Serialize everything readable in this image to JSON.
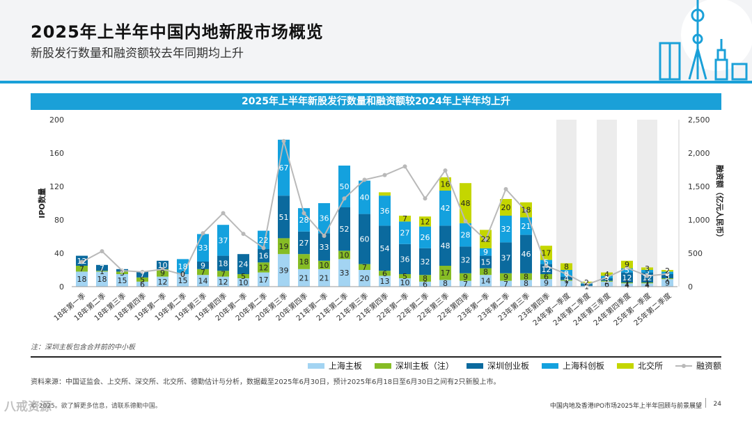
{
  "header": {
    "title": "2025年上半年中国内地新股市场概览",
    "subtitle": "新股发行数量和融资额较去年同期均上升"
  },
  "chart_data": {
    "type": "bar",
    "title": "2025年上半年新股发行数量和融资额较2024年上半年均上升",
    "ylabel": "IPO数量",
    "y2label": "融资额（亿元人民币）",
    "ylim": [
      0,
      200
    ],
    "yticks": [
      0,
      40,
      80,
      120,
      160,
      200
    ],
    "y2lim": [
      0,
      2500
    ],
    "y2ticks": [
      "0",
      "500",
      "1,000",
      "1,500",
      "2,000",
      "2,500"
    ],
    "categories": [
      "18年第一季",
      "18年第二季",
      "18年第三季",
      "18年第四季",
      "19年第一季",
      "19年第二季",
      "19年第三季",
      "19年第四季",
      "20年第一季",
      "20年第二季",
      "20年第三季",
      "20年第四季",
      "21年第一季",
      "21年第二季",
      "21年第三季",
      "21年第四季",
      "22年第一季",
      "22年第二季",
      "22年第三季",
      "22年第四季",
      "23年第一季",
      "23年第二季",
      "23年第三季",
      "23年第四季",
      "24年第一季度",
      "24年第二季度",
      "24年第三季度",
      "24年第四季度",
      "25年第一季度",
      "25年第二季度"
    ],
    "series": [
      {
        "name": "上海主板",
        "color": "#a3d4f2",
        "values": [
          18,
          18,
          15,
          6,
          12,
          15,
          14,
          12,
          10,
          17,
          39,
          21,
          21,
          33,
          20,
          13,
          10,
          6,
          8,
          7,
          14,
          7,
          8,
          9,
          7,
          1,
          6,
          4,
          4,
          9
        ]
      },
      {
        "name": "深圳主板（注）",
        "color": "#86bc25",
        "values": [
          7,
          1,
          3,
          5,
          9,
          0,
          7,
          7,
          5,
          12,
          19,
          18,
          10,
          10,
          7,
          6,
          5,
          8,
          17,
          9,
          8,
          9,
          8,
          6,
          1,
          0,
          1,
          1,
          1,
          1
        ]
      },
      {
        "name": "深圳创业板",
        "color": "#0b6a9e",
        "values": [
          12,
          7,
          3,
          7,
          10,
          0,
          9,
          18,
          24,
          16,
          51,
          27,
          33,
          52,
          60,
          54,
          36,
          32,
          48,
          32,
          15,
          37,
          46,
          12,
          4,
          2,
          3,
          12,
          12,
          5
        ]
      },
      {
        "name": "上海科创板",
        "color": "#14a1de",
        "values": [
          0,
          0,
          0,
          0,
          0,
          18,
          33,
          37,
          0,
          22,
          67,
          28,
          36,
          50,
          40,
          36,
          27,
          26,
          42,
          28,
          9,
          32,
          21,
          5,
          8,
          1,
          3,
          5,
          3,
          3
        ]
      },
      {
        "name": "北交所",
        "color": "#c4d600",
        "values": [
          0,
          0,
          0,
          0,
          0,
          0,
          0,
          0,
          0,
          0,
          0,
          0,
          0,
          0,
          0,
          4,
          7,
          12,
          16,
          48,
          22,
          20,
          18,
          17,
          8,
          2,
          4,
          9,
          3,
          2
        ]
      }
    ],
    "labels": [
      [
        "18",
        "18",
        "15",
        "6",
        "12",
        "15",
        "14",
        "12",
        "10",
        "17",
        "39",
        "21",
        "21",
        "33",
        "20",
        "13",
        "10",
        "6",
        "8",
        "7",
        "14",
        "7",
        "8",
        "9",
        "7",
        "1",
        "6",
        "4",
        "4",
        "9"
      ],
      [
        "7",
        "1",
        "3",
        "5",
        "9",
        "0",
        "7",
        "7",
        "5",
        "12",
        "19",
        "18",
        "10",
        "10",
        "7",
        "6",
        "5",
        "8",
        "17",
        "9",
        "8",
        "9",
        "8",
        "6",
        "1",
        "",
        "1",
        "1",
        "1",
        "1"
      ],
      [
        "12",
        "7",
        "3",
        "7",
        "10",
        "",
        "9",
        "18",
        "24",
        "16",
        "51",
        "27",
        "33",
        "52",
        "60",
        "54",
        "36",
        "32",
        "48",
        "32",
        "15",
        "37",
        "46",
        "12",
        "4",
        "2",
        "3",
        "12",
        "12",
        "5"
      ],
      [
        "",
        "",
        "",
        "",
        "",
        "18",
        "33",
        "37",
        "",
        "22",
        "67",
        "28",
        "36",
        "50",
        "40",
        "36",
        "27",
        "26",
        "42",
        "28",
        "9",
        "32",
        "21",
        "5",
        "8",
        "1",
        "3",
        "5",
        "3",
        "3"
      ],
      [
        "",
        "",
        "",
        "",
        "",
        "",
        "",
        "",
        "",
        "",
        "",
        "",
        "",
        "",
        "",
        "",
        "7",
        "12",
        "16",
        "48",
        "22",
        "20",
        "18",
        "17",
        "8",
        "2",
        "4",
        "9",
        "3",
        "2"
      ]
    ],
    "line": {
      "name": "融资额",
      "color": "#b9b9b9",
      "values": [
        370,
        530,
        240,
        220,
        260,
        180,
        800,
        1100,
        790,
        580,
        2180,
        1100,
        760,
        1320,
        1600,
        1670,
        1800,
        1320,
        1740,
        980,
        700,
        1460,
        1130,
        310,
        190,
        30,
        140,
        280,
        160,
        190
      ]
    },
    "highlight_from_index": 24,
    "legend_position": "bottom-right",
    "grid": false
  },
  "note": "注：深圳主板包含合并前的中小板",
  "source": "资料来源：中国证监会、上交所、深交所、北交所、德勤估计与分析，数据截至2025年6月30日，预计2025年6月18日至6月30日之间有2只新股上市。",
  "footer": {
    "copyright": "© 2025。欲了解更多信息，请联系德勤中国。",
    "report": "中国内地及香港IPO市场2025年上半年回顾与前景展望",
    "page": "24"
  },
  "watermark": "八戒资源"
}
